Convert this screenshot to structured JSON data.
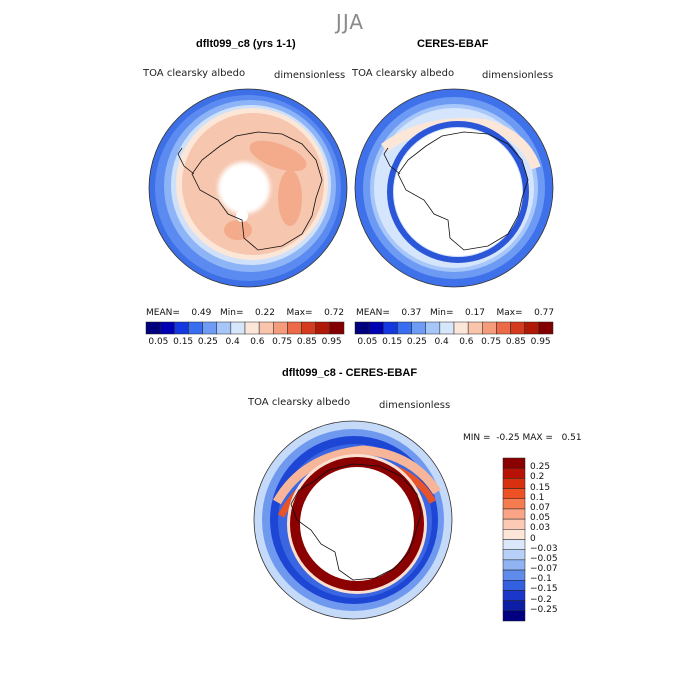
{
  "season": "JJA",
  "panels": [
    {
      "title": "dflt099_c8 (yrs 1-1)",
      "variable": "TOA clearsky albedo",
      "units": "dimensionless",
      "stats": {
        "mean_label": "MEAN=",
        "mean": "0.49",
        "min_label": "Min=",
        "min": "0.22",
        "max_label": "Max=",
        "max": "0.72"
      }
    },
    {
      "title": "CERES-EBAF",
      "variable": "TOA clearsky albedo",
      "units": "dimensionless",
      "stats": {
        "mean_label": "MEAN=",
        "mean": "0.37",
        "min_label": "Min=",
        "min": "0.17",
        "max_label": "Max=",
        "max": "0.77"
      }
    }
  ],
  "colorbar_horizontal": {
    "labels": [
      "0.05",
      "0.15",
      "0.25",
      "0.4",
      "0.6",
      "0.75",
      "0.85",
      "0.95"
    ],
    "colors": [
      "#00007f",
      "#0000b3",
      "#1437e0",
      "#3a6ef0",
      "#6e9cf5",
      "#a6c6fa",
      "#d6e6fb",
      "#fbe7d9",
      "#f8c4ab",
      "#f59c7c",
      "#ec6a48",
      "#d43a1e",
      "#b01808",
      "#830000"
    ]
  },
  "diff_panel": {
    "title": "dflt099_c8 - CERES-EBAF",
    "variable": "TOA clearsky albedo",
    "units": "dimensionless",
    "min_label": "MIN =",
    "min": "-0.25",
    "max_label": "MAX =",
    "max": "0.51"
  },
  "colorbar_vertical": {
    "labels": [
      "0.25",
      "0.2",
      "0.15",
      "0.1",
      "0.07",
      "0.05",
      "0.03",
      "0",
      "−0.03",
      "−0.05",
      "−0.07",
      "−0.1",
      "−0.15",
      "−0.2",
      "−0.25"
    ],
    "colors": [
      "#8b0000",
      "#b81206",
      "#d9300f",
      "#ee5224",
      "#f57c4f",
      "#f9a586",
      "#fccab4",
      "#fde5d8",
      "#dbe8fb",
      "#b7d0f7",
      "#8fb3f3",
      "#5f8ceb",
      "#3360df",
      "#1a37c9",
      "#0c1ea4",
      "#000080"
    ]
  }
}
